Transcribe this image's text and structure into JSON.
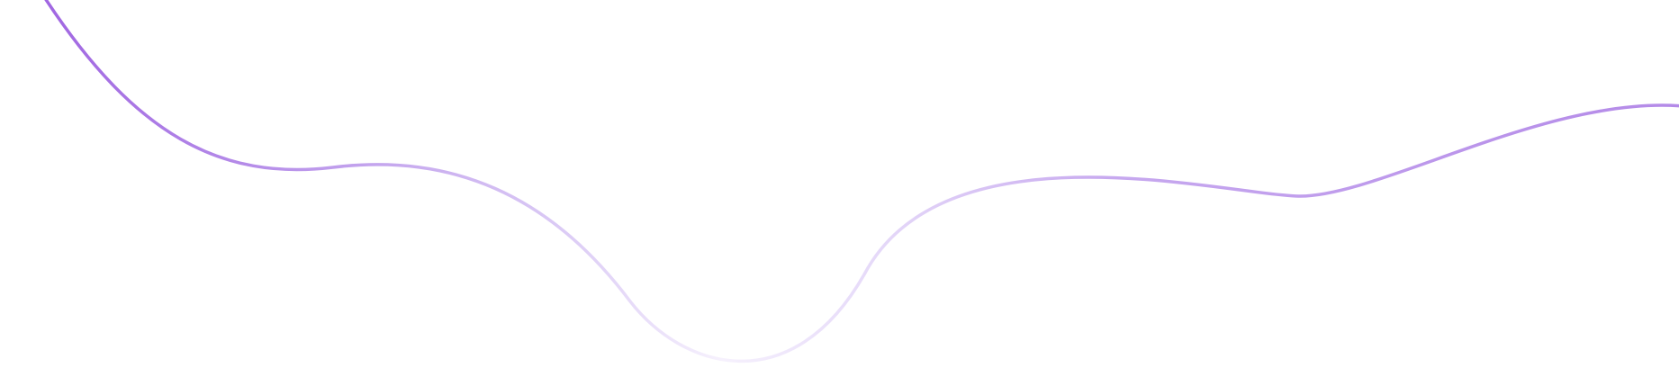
{
  "decoration": {
    "type": "wavy-line",
    "colors": {
      "background": "#ffffff",
      "stroke_strong": "#9c5ee0",
      "stroke_mid": "#b993ea",
      "stroke_faint": "#f6f1fd"
    }
  }
}
